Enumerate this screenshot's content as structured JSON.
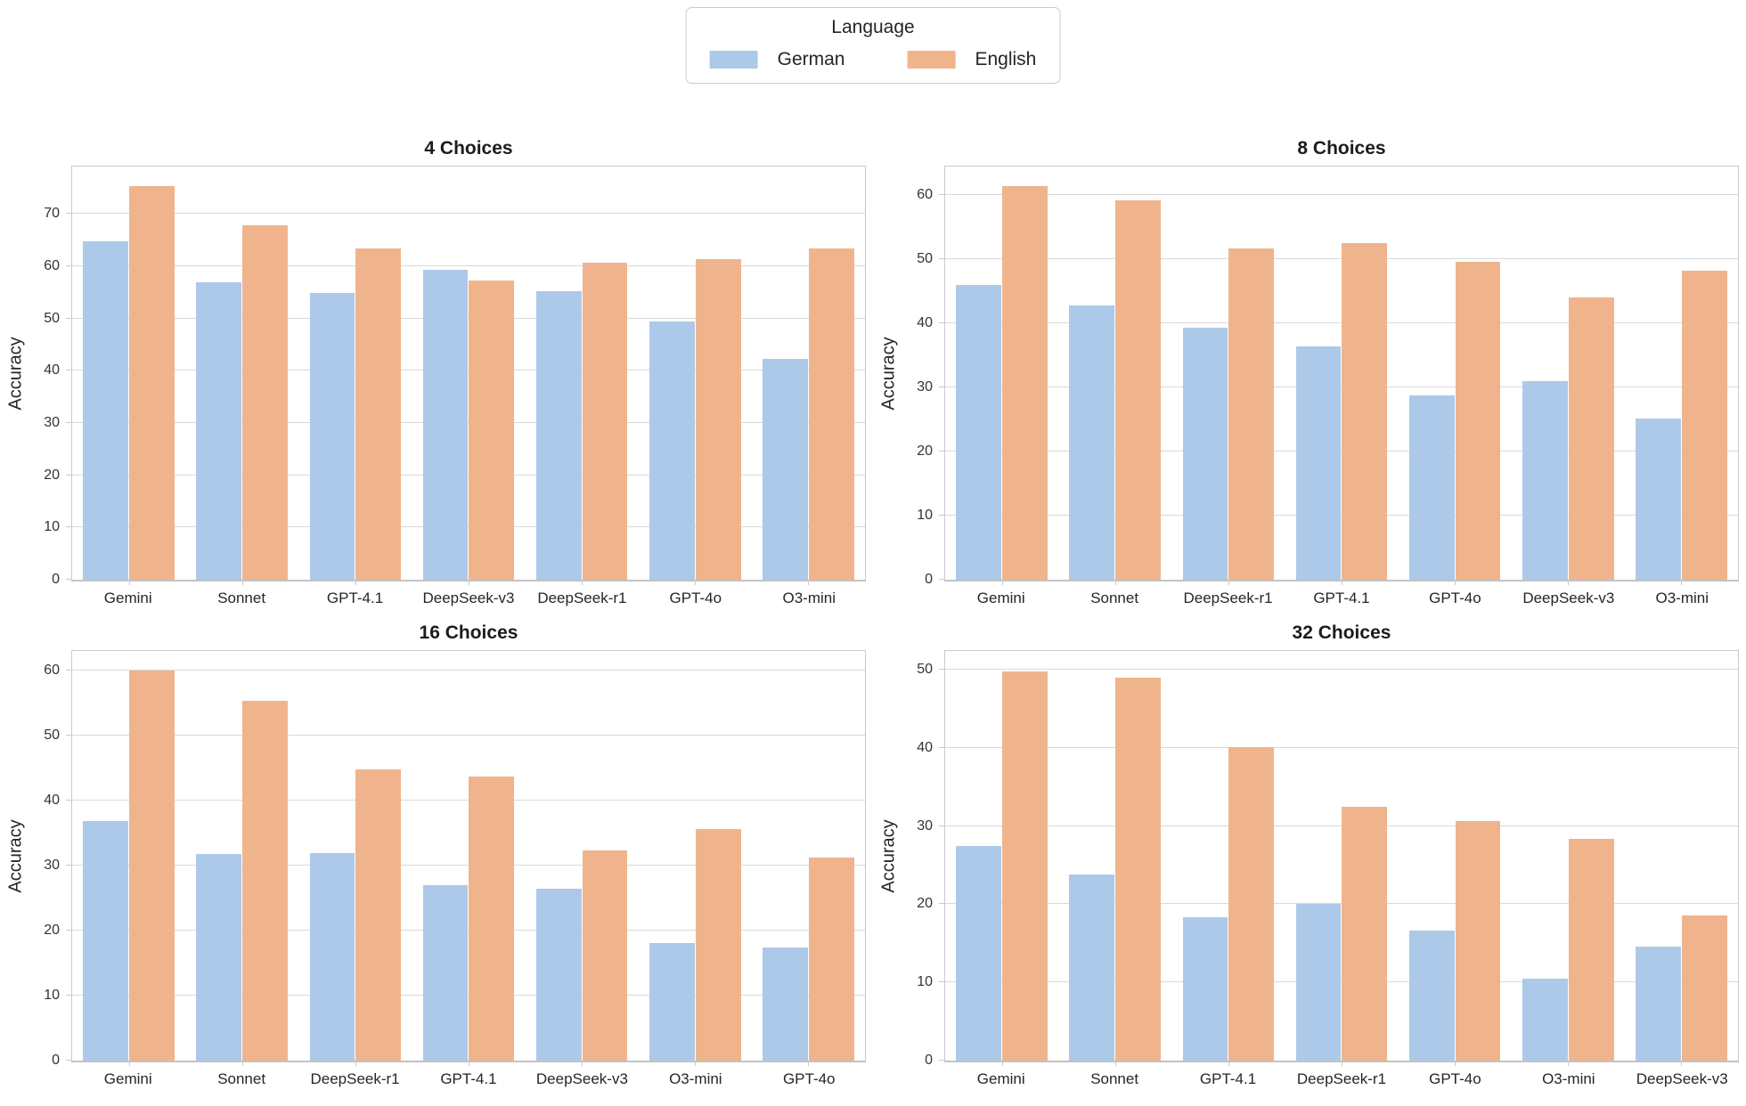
{
  "legend": {
    "title": "Language",
    "entries": [
      {
        "label": "German",
        "color": "#acc9e9"
      },
      {
        "label": "English",
        "color": "#f0b48c"
      }
    ]
  },
  "colors": {
    "grid": "#d9d9d9",
    "spine": "#c9c9c9",
    "text": "#262626"
  },
  "chart_data": [
    {
      "type": "bar",
      "title": "4 Choices",
      "ylabel": "Accuracy",
      "ylim": [
        0,
        79.1
      ],
      "yticks": [
        0,
        10,
        20,
        30,
        40,
        50,
        60,
        70
      ],
      "grid": true,
      "legend_position": "figure-top-center",
      "categories": [
        "Gemini",
        "Sonnet",
        "GPT-4.1",
        "DeepSeek-v3",
        "DeepSeek-r1",
        "GPT-4o",
        "O3-mini"
      ],
      "series": [
        {
          "name": "German",
          "values": [
            64.8,
            56.9,
            54.9,
            59.4,
            55.3,
            49.4,
            42.2
          ]
        },
        {
          "name": "English",
          "values": [
            75.3,
            67.8,
            63.4,
            57.2,
            60.7,
            61.4,
            63.4
          ]
        }
      ]
    },
    {
      "type": "bar",
      "title": "8 Choices",
      "ylabel": "Accuracy",
      "ylim": [
        0,
        64.4
      ],
      "yticks": [
        0,
        10,
        20,
        30,
        40,
        50,
        60
      ],
      "grid": true,
      "legend_position": "figure-top-center",
      "categories": [
        "Gemini",
        "Sonnet",
        "DeepSeek-r1",
        "GPT-4.1",
        "GPT-4o",
        "DeepSeek-v3",
        "O3-mini"
      ],
      "series": [
        {
          "name": "German",
          "values": [
            46.0,
            42.7,
            39.3,
            36.3,
            28.7,
            30.9,
            25.1
          ]
        },
        {
          "name": "English",
          "values": [
            61.3,
            59.1,
            51.7,
            52.5,
            49.5,
            44.0,
            48.1
          ]
        }
      ]
    },
    {
      "type": "bar",
      "title": "16 Choices",
      "ylabel": "Accuracy",
      "ylim": [
        0,
        63.0
      ],
      "yticks": [
        0,
        10,
        20,
        30,
        40,
        50,
        60
      ],
      "grid": true,
      "legend_position": "figure-top-center",
      "categories": [
        "Gemini",
        "Sonnet",
        "DeepSeek-r1",
        "GPT-4.1",
        "DeepSeek-v3",
        "O3-mini",
        "GPT-4o"
      ],
      "series": [
        {
          "name": "German",
          "values": [
            36.9,
            31.8,
            31.9,
            27.1,
            26.5,
            18.2,
            17.4
          ]
        },
        {
          "name": "English",
          "values": [
            60.0,
            55.4,
            44.9,
            43.8,
            32.4,
            35.7,
            31.3
          ]
        }
      ]
    },
    {
      "type": "bar",
      "title": "32 Choices",
      "ylabel": "Accuracy",
      "ylim": [
        0,
        52.3
      ],
      "yticks": [
        0,
        10,
        20,
        30,
        40,
        50
      ],
      "grid": true,
      "legend_position": "figure-top-center",
      "categories": [
        "Gemini",
        "Sonnet",
        "GPT-4.1",
        "DeepSeek-r1",
        "GPT-4o",
        "O3-mini",
        "DeepSeek-v3"
      ],
      "series": [
        {
          "name": "German",
          "values": [
            27.5,
            23.8,
            18.3,
            20.0,
            16.7,
            10.5,
            14.6
          ]
        },
        {
          "name": "English",
          "values": [
            49.7,
            48.9,
            40.1,
            32.4,
            30.6,
            28.4,
            18.6
          ]
        }
      ]
    }
  ]
}
